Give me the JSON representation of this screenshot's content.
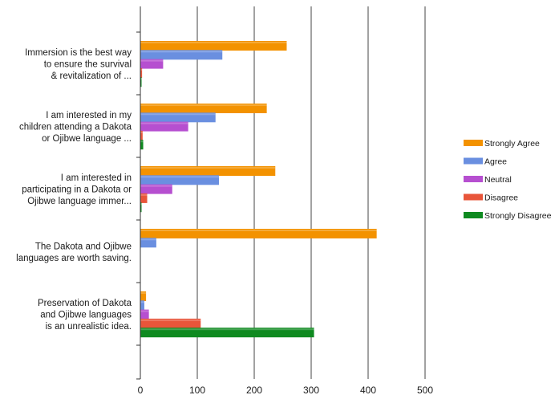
{
  "chart_data": {
    "type": "bar",
    "orientation": "horizontal",
    "categories": [
      [
        "Immersion is the best way",
        "to ensure the survival",
        "& revitalization of ..."
      ],
      [
        "I am interested in my",
        "children attending a Dakota",
        "or Ojibwe language ..."
      ],
      [
        "I am interested in",
        "participating in a Dakota or",
        "Ojibwe language immer..."
      ],
      [
        "The Dakota and Ojibwe",
        "languages are worth saving."
      ],
      [
        "Preservation of Dakota",
        "and Ojibwe languages",
        "is an unrealistic idea."
      ]
    ],
    "series": [
      {
        "name": "Strongly Agree",
        "color": "#f39200",
        "values": [
          257,
          222,
          237,
          415,
          10
        ]
      },
      {
        "name": "Agree",
        "color": "#6a8fe0",
        "values": [
          144,
          132,
          138,
          28,
          7
        ]
      },
      {
        "name": "Neutral",
        "color": "#b64fd0",
        "values": [
          40,
          84,
          56,
          0,
          15
        ]
      },
      {
        "name": "Disagree",
        "color": "#e8553a",
        "values": [
          3,
          4,
          12,
          0,
          106
        ]
      },
      {
        "name": "Strongly Disagree",
        "color": "#0f8a20",
        "values": [
          1,
          5,
          2,
          0,
          305
        ]
      }
    ],
    "xlim": [
      0,
      500
    ],
    "xticks": [
      0,
      100,
      200,
      300,
      400,
      500
    ],
    "grid": true,
    "legend_position": "right"
  }
}
